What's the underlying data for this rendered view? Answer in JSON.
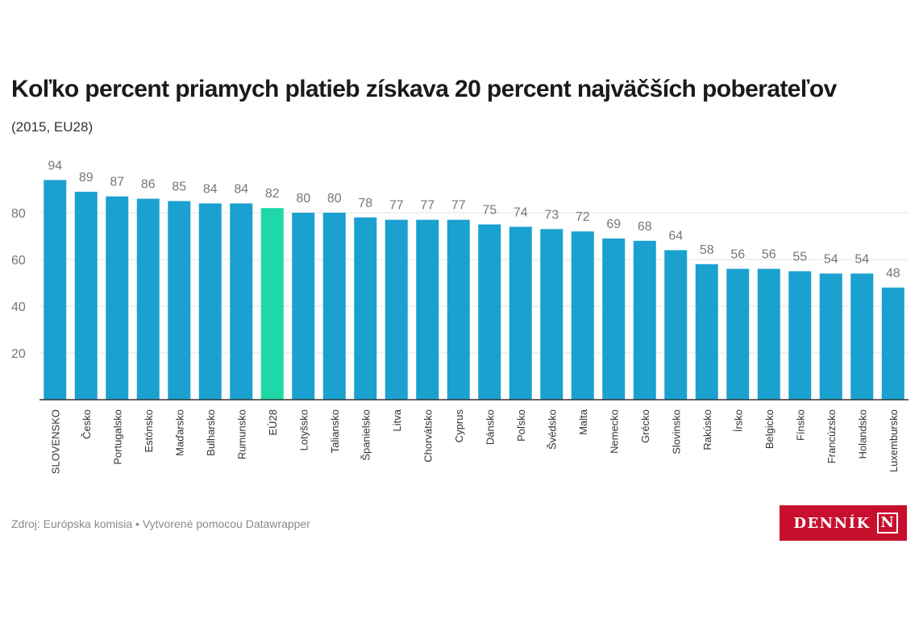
{
  "title": "Koľko percent priamych platieb získava 20 percent najväčších poberateľov",
  "subtitle": "(2015, EU28)",
  "source": "Zdroj: Európska komisia • Vytvorené pomocou Datawrapper",
  "logo": {
    "text": "DENNÍK",
    "mark": "N"
  },
  "colors": {
    "bar": "#1aa1d0",
    "highlight": "#1ed8a5",
    "logo_bg": "#c8102e"
  },
  "chart_data": {
    "type": "bar",
    "categories": [
      "SLOVENSKO",
      "Česko",
      "Portugalsko",
      "Estónsko",
      "Maďarsko",
      "Bulharsko",
      "Rumunsko",
      "EÚ28",
      "Lotyšsko",
      "Taliansko",
      "Španielsko",
      "Litva",
      "Chorvátsko",
      "Cyprus",
      "Dánsko",
      "Poľsko",
      "Švédsko",
      "Malta",
      "Nemecko",
      "Grécko",
      "Slovinsko",
      "Rakúsko",
      "Írsko",
      "Belgicko",
      "Fínsko",
      "Francúzsko",
      "Holandsko",
      "Luxembursko"
    ],
    "values": [
      94,
      89,
      87,
      86,
      85,
      84,
      84,
      82,
      80,
      80,
      78,
      77,
      77,
      77,
      75,
      74,
      73,
      72,
      69,
      68,
      64,
      58,
      56,
      56,
      55,
      54,
      54,
      48
    ],
    "highlight_category": "EÚ28",
    "yticks": [
      20,
      40,
      60,
      80
    ],
    "ylim": [
      0,
      100
    ],
    "grid": true
  }
}
